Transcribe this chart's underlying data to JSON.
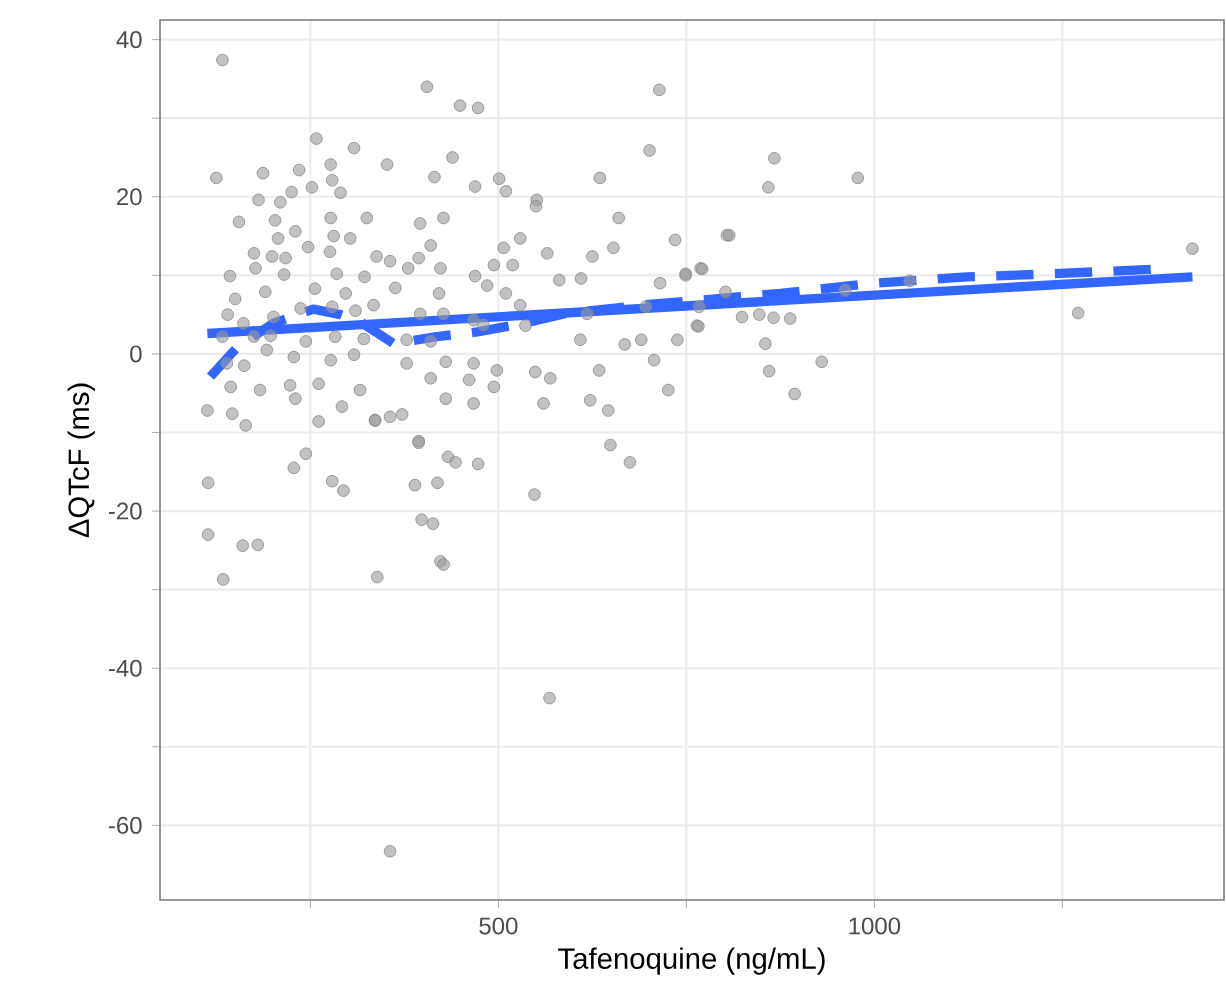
{
  "chart_data": {
    "type": "scatter",
    "xlabel": "Tafenoquine (ng/mL)",
    "ylabel": "ΔQTcF (ms)",
    "xlim": [
      50,
      1465
    ],
    "ylim": [
      -69.5,
      42.5
    ],
    "xticks": [
      {
        "value": 250,
        "label": null
      },
      500,
      {
        "value": 750,
        "label": null
      },
      1000,
      {
        "value": 1250,
        "label": null
      }
    ],
    "yticks": [
      -60,
      {
        "value": -50,
        "label": null
      },
      -40,
      {
        "value": -30,
        "label": null
      },
      -20,
      {
        "value": -10,
        "label": null
      },
      0,
      {
        "value": 10,
        "label": null
      },
      20,
      {
        "value": 30,
        "label": null
      },
      40
    ],
    "grid": true,
    "series": [
      {
        "type": "scatter",
        "color": "#999999",
        "marker": "circle",
        "x": [
          133,
          405,
          449,
          473,
          714,
          125,
          258,
          308,
          187,
          235,
          277,
          352,
          439,
          415,
          469,
          501,
          510,
          635,
          701,
          181,
          210,
          225,
          252,
          279,
          290,
          155,
          203,
          230,
          277,
          325,
          281,
          303,
          207,
          396,
          427,
          551,
          550,
          660,
          735,
          175,
          199,
          217,
          247,
          276,
          338,
          356,
          394,
          410,
          507,
          529,
          565,
          625,
          653,
          143,
          177,
          215,
          285,
          322,
          380,
          423,
          469,
          494,
          519,
          581,
          610,
          715,
          749,
          769,
          150,
          190,
          256,
          297,
          334,
          363,
          421,
          485,
          510,
          140,
          161,
          201,
          237,
          279,
          310,
          396,
          427,
          480,
          529,
          618,
          696,
          767,
          133,
          175,
          197,
          244,
          283,
          321,
          378,
          410,
          467,
          536,
          609,
          668,
          690,
          738,
          764,
          139,
          162,
          192,
          228,
          277,
          308,
          378,
          430,
          467,
          498,
          549,
          634,
          707,
          144,
          183,
          223,
          261,
          316,
          410,
          461,
          494,
          569,
          113,
          146,
          230,
          292,
          336,
          356,
          372,
          430,
          467,
          560,
          622,
          646,
          726,
          164,
          261,
          394,
          244,
          649,
          114,
          228,
          279,
          294,
          336,
          394,
          389,
          419,
          433,
          443,
          473,
          548,
          675,
          114,
          160,
          180,
          134,
          339,
          398,
          413,
          423,
          427,
          568,
          356,
          867,
          859,
          978,
          804,
          807,
          749,
          771,
          802,
          961,
          1047,
          824,
          847,
          866,
          888,
          766,
          855,
          930,
          860,
          894,
          1271,
          1423
        ],
        "values": [
          37.4,
          34.0,
          31.6,
          31.3,
          33.6,
          22.4,
          27.4,
          26.2,
          23.0,
          23.4,
          24.1,
          24.1,
          25.0,
          22.5,
          21.3,
          22.3,
          20.7,
          22.4,
          25.9,
          19.6,
          19.3,
          20.6,
          21.2,
          22.1,
          20.5,
          16.8,
          17.0,
          15.6,
          17.3,
          17.3,
          15.0,
          14.7,
          14.7,
          16.6,
          17.3,
          19.6,
          18.8,
          17.3,
          14.5,
          12.8,
          12.4,
          12.2,
          13.6,
          13.0,
          12.4,
          11.8,
          12.2,
          13.8,
          13.5,
          14.7,
          12.8,
          12.4,
          13.5,
          9.9,
          10.9,
          10.1,
          10.2,
          9.8,
          10.9,
          10.9,
          9.9,
          11.3,
          11.3,
          9.4,
          9.6,
          9.0,
          10.2,
          10.9,
          7.0,
          7.9,
          8.3,
          7.7,
          6.2,
          8.4,
          7.7,
          8.7,
          7.7,
          5.0,
          3.9,
          4.7,
          5.8,
          6.0,
          5.5,
          5.1,
          5.1,
          3.7,
          6.2,
          5.1,
          6.0,
          6.0,
          2.2,
          2.2,
          2.3,
          1.6,
          2.2,
          1.9,
          1.8,
          1.6,
          4.3,
          3.6,
          1.8,
          1.2,
          1.8,
          1.8,
          3.6,
          -1.2,
          -1.5,
          0.5,
          -0.4,
          -0.8,
          -0.1,
          -1.2,
          -1.0,
          -1.2,
          -2.1,
          -2.3,
          -2.1,
          -0.8,
          -4.2,
          -4.6,
          -4.0,
          -3.8,
          -4.6,
          -3.1,
          -3.3,
          -4.2,
          -3.1,
          -7.2,
          -7.6,
          -5.7,
          -6.7,
          -8.4,
          -8.0,
          -7.7,
          -5.7,
          -6.3,
          -6.3,
          -5.9,
          -7.2,
          -4.6,
          -9.1,
          -8.6,
          -11.1,
          -12.7,
          -11.6,
          -16.4,
          -14.5,
          -16.2,
          -17.4,
          -8.5,
          -11.3,
          -16.7,
          -16.4,
          -13.1,
          -13.8,
          -14.0,
          -17.9,
          -13.8,
          -23.0,
          -24.4,
          -24.3,
          -28.7,
          -28.4,
          -21.1,
          -21.6,
          -26.4,
          -26.8,
          -43.8,
          -63.3,
          24.9,
          21.2,
          22.4,
          15.1,
          15.1,
          10.0,
          10.8,
          7.9,
          8.1,
          9.3,
          4.7,
          5.0,
          4.6,
          4.5,
          3.5,
          1.3,
          -1.0,
          -2.2,
          -5.1,
          5.2,
          13.4
        ]
      },
      {
        "type": "line",
        "color": "#3366ff",
        "line_style": "solid",
        "marker": "none",
        "x": [
          113,
          1423
        ],
        "values": [
          2.6,
          9.8
        ]
      },
      {
        "type": "line",
        "color": "#3366ff",
        "line_style": "dashed",
        "marker": "none",
        "x": [
          117,
          153,
          201,
          254,
          290,
          316,
          361,
          418,
          472,
          534,
          587,
          700,
          875,
          999,
          1123,
          1238,
          1376
        ],
        "values": [
          -2.9,
          0.9,
          3.9,
          5.7,
          5.0,
          4.1,
          1.3,
          2.2,
          2.8,
          3.9,
          5.1,
          6.3,
          7.7,
          9.0,
          9.8,
          10.2,
          10.8
        ]
      }
    ]
  }
}
